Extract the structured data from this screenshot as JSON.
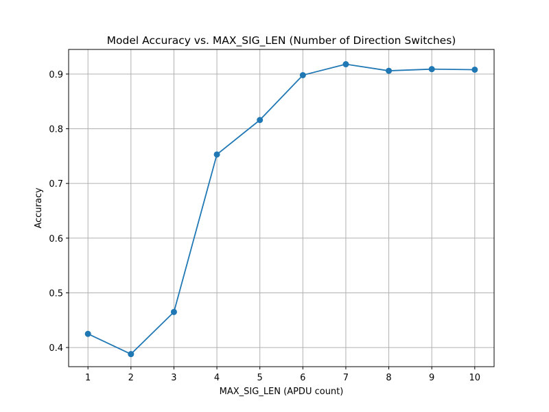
{
  "chart_data": {
    "type": "line",
    "title": "Model Accuracy vs. MAX_SIG_LEN (Number of Direction Switches)",
    "xlabel": "MAX_SIG_LEN (APDU count)",
    "ylabel": "Accuracy",
    "x": [
      1,
      2,
      3,
      4,
      5,
      6,
      7,
      8,
      9,
      10
    ],
    "x_ticks": [
      "1",
      "2",
      "3",
      "4",
      "5",
      "6",
      "7",
      "8",
      "9",
      "10"
    ],
    "y_ticks": [
      "0.4",
      "0.5",
      "0.6",
      "0.7",
      "0.8",
      "0.9"
    ],
    "xlim": [
      0.55,
      10.45
    ],
    "ylim": [
      0.365,
      0.945
    ],
    "grid": true,
    "marker": "circle",
    "series": [
      {
        "values": [
          0.425,
          0.388,
          0.465,
          0.753,
          0.816,
          0.898,
          0.918,
          0.906,
          0.909,
          0.908
        ],
        "color": "#1f77b4"
      }
    ]
  }
}
